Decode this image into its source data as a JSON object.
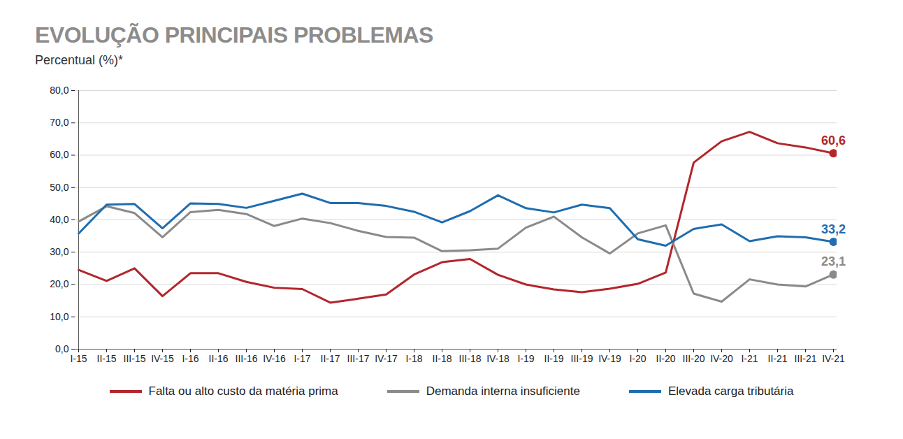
{
  "chart_data": {
    "type": "line",
    "title": "EVOLUÇÃO PRINCIPAIS PROBLEMAS",
    "subtitle": "Percentual (%)*",
    "categories": [
      "I-15",
      "II-15",
      "III-15",
      "IV-15",
      "I-16",
      "II-16",
      "III-16",
      "IV-16",
      "I-17",
      "II-17",
      "III-17",
      "IV-17",
      "I-18",
      "II-18",
      "III-18",
      "IV-18",
      "I-19",
      "II-19",
      "III-19",
      "IV-19",
      "I-20",
      "II-20",
      "III-20",
      "IV-20",
      "I-21",
      "II-21",
      "III-21",
      "IV-21"
    ],
    "series": [
      {
        "name": "Falta ou alto custo da matéria prima",
        "color": "#b3262b",
        "values": [
          24.5,
          21.1,
          25.0,
          16.4,
          23.5,
          23.5,
          20.8,
          19.0,
          18.6,
          14.4,
          15.6,
          16.9,
          23.1,
          26.9,
          27.9,
          23.0,
          20.0,
          18.5,
          17.6,
          18.7,
          20.2,
          23.7,
          57.7,
          64.3,
          67.2,
          63.7,
          62.4,
          60.6
        ],
        "value_labels": [
          null,
          null,
          null,
          null,
          null,
          null,
          null,
          null,
          null,
          null,
          null,
          null,
          null,
          null,
          null,
          null,
          null,
          null,
          null,
          null,
          null,
          null,
          null,
          null,
          null,
          null,
          null,
          "60,6"
        ]
      },
      {
        "name": "Demanda interna insuficiente",
        "color": "#8a8a8a",
        "values": [
          39.5,
          44.2,
          42.1,
          34.6,
          42.4,
          43.1,
          41.8,
          38.1,
          40.4,
          39.0,
          36.6,
          34.7,
          34.5,
          30.3,
          30.6,
          31.1,
          37.6,
          41.0,
          34.6,
          29.6,
          35.8,
          38.3,
          17.2,
          14.7,
          21.6,
          20.0,
          19.4,
          23.1
        ],
        "value_labels": [
          null,
          null,
          null,
          null,
          null,
          null,
          null,
          null,
          null,
          null,
          null,
          null,
          null,
          null,
          null,
          null,
          null,
          null,
          null,
          null,
          null,
          null,
          null,
          null,
          null,
          null,
          null,
          "23,1"
        ]
      },
      {
        "name": "Elevada carga tributária",
        "color": "#1f6db0",
        "values": [
          35.8,
          44.7,
          44.9,
          37.4,
          45.1,
          44.9,
          43.7,
          45.9,
          48.1,
          45.2,
          45.2,
          44.3,
          42.5,
          39.2,
          42.7,
          47.6,
          43.6,
          42.3,
          44.7,
          43.6,
          34.0,
          32.0,
          37.2,
          38.6,
          33.4,
          34.9,
          34.6,
          33.2
        ],
        "value_labels": [
          null,
          null,
          null,
          null,
          null,
          null,
          null,
          null,
          null,
          null,
          null,
          null,
          null,
          null,
          null,
          null,
          null,
          null,
          null,
          null,
          null,
          null,
          null,
          null,
          null,
          null,
          null,
          "33,2"
        ]
      }
    ],
    "ylim": [
      0,
      80
    ],
    "yticks": [
      {
        "value": 0,
        "label": "0,0"
      },
      {
        "value": 10,
        "label": "10,0"
      },
      {
        "value": 20,
        "label": "20,0"
      },
      {
        "value": 30,
        "label": "30,0"
      },
      {
        "value": 40,
        "label": "40,0"
      },
      {
        "value": 50,
        "label": "50,0"
      },
      {
        "value": 60,
        "label": "60,0"
      },
      {
        "value": 70,
        "label": "70,0"
      },
      {
        "value": 80,
        "label": "80,0"
      }
    ],
    "grid": true,
    "legend": "bottom"
  }
}
